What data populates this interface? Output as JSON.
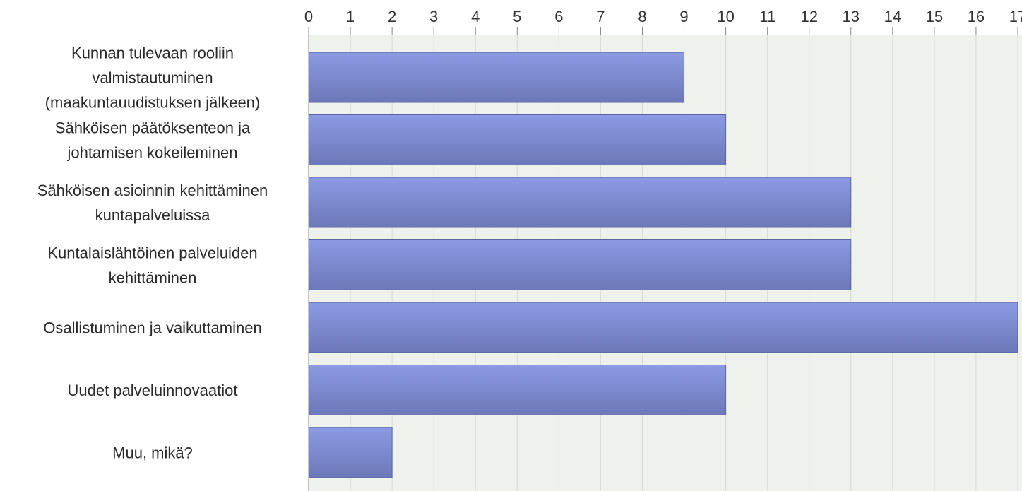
{
  "chart_data": {
    "type": "bar",
    "orientation": "horizontal",
    "title": "",
    "xlabel": "",
    "ylabel": "",
    "xlim": [
      0,
      17
    ],
    "x_ticks": [
      0,
      1,
      2,
      3,
      4,
      5,
      6,
      7,
      8,
      9,
      10,
      11,
      12,
      13,
      14,
      15,
      16,
      17
    ],
    "x_axis_position": "top",
    "grid": true,
    "legend": "none",
    "categories": [
      [
        "Kunnan tulevaan rooliin",
        "valmistautuminen",
        "(maakuntauudistuksen jälkeen)"
      ],
      [
        "Sähköisen päätöksenteon ja",
        "johtamisen kokeileminen"
      ],
      [
        "Sähköisen asioinnin kehittäminen",
        "kuntapalveluissa"
      ],
      [
        "Kuntalaislähtöinen palveluiden",
        "kehittäminen"
      ],
      [
        "Osallistuminen ja vaikuttaminen"
      ],
      [
        "Uudet palveluinnovaatiot"
      ],
      [
        "Muu, mikä?"
      ]
    ],
    "values": [
      9,
      10,
      13,
      13,
      17,
      10,
      2
    ],
    "colors": {
      "bar_top": "#8b9ae4",
      "bar_bottom": "#6c78b8",
      "bar_stroke": "#5a65a0",
      "plot_background": "#eff1ec",
      "grid": "#d8dbd4",
      "axis": "#888888"
    }
  }
}
